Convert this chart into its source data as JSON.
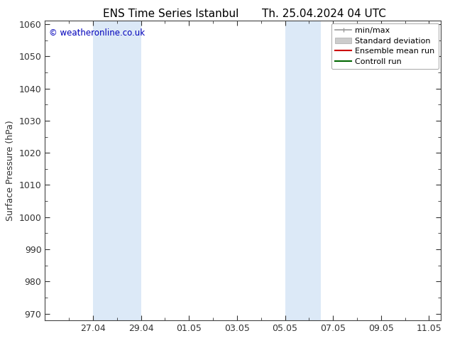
{
  "title": "ENS Time Series Istanbul",
  "title2": "Th. 25.04.2024 04 UTC",
  "ylabel": "Surface Pressure (hPa)",
  "ylim": [
    968,
    1061
  ],
  "yticks": [
    970,
    980,
    990,
    1000,
    1010,
    1020,
    1030,
    1040,
    1050,
    1060
  ],
  "xlim": [
    0,
    16.5
  ],
  "xtick_positions": [
    2,
    4,
    6,
    8,
    10,
    12,
    14,
    16
  ],
  "xtick_labels": [
    "27.04",
    "29.04",
    "01.05",
    "03.05",
    "05.05",
    "07.05",
    "09.05",
    "11.05"
  ],
  "shaded_bands": [
    {
      "start": 2,
      "end": 4
    },
    {
      "start": 10,
      "end": 11.5
    }
  ],
  "band_color": "#dce9f7",
  "copyright_text": "© weatheronline.co.uk",
  "copyright_color": "#0000bb",
  "legend_items": [
    {
      "label": "min/max",
      "color": "#999999",
      "type": "minmax"
    },
    {
      "label": "Standard deviation",
      "color": "#cccccc",
      "type": "fill"
    },
    {
      "label": "Ensemble mean run",
      "color": "#cc0000",
      "type": "line"
    },
    {
      "label": "Controll run",
      "color": "#006600",
      "type": "line"
    }
  ],
  "bg_color": "#ffffff",
  "plot_bg_color": "#ffffff",
  "spine_color": "#444444",
  "tick_color": "#333333",
  "title_fontsize": 11,
  "label_fontsize": 9,
  "tick_fontsize": 9,
  "legend_fontsize": 8
}
